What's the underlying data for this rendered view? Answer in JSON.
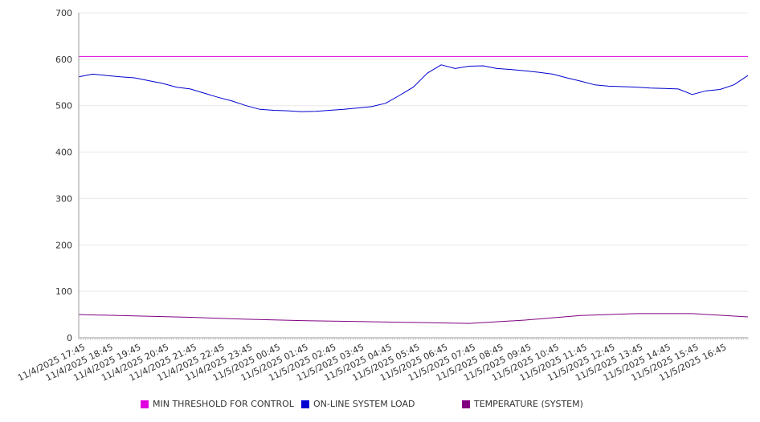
{
  "chart_data": {
    "type": "line",
    "y_ticks": [
      0,
      100,
      200,
      300,
      400,
      500,
      600,
      700
    ],
    "ylim": [
      0,
      700
    ],
    "grid": true,
    "legend_position": "bottom",
    "x_range": [
      "11/4/2025 17:30",
      "11/5/2025 17:30"
    ],
    "x_ticks": [
      "11/4/2025 17:45",
      "11/4/2025 18:45",
      "11/4/2025 19:45",
      "11/4/2025 20:45",
      "11/4/2025 21:45",
      "11/4/2025 22:45",
      "11/4/2025 23:45",
      "11/5/2025 00:45",
      "11/5/2025 01:45",
      "11/5/2025 02:45",
      "11/5/2025 03:45",
      "11/5/2025 04:45",
      "11/5/2025 05:45",
      "11/5/2025 06:45",
      "11/5/2025 07:45",
      "11/5/2025 08:45",
      "11/5/2025 09:45",
      "11/5/2025 10:45",
      "11/5/2025 11:45",
      "11/5/2025 12:45",
      "11/5/2025 13:45",
      "11/5/2025 14:45",
      "11/5/2025 15:45",
      "11/5/2025 16:45"
    ],
    "series": [
      {
        "name": "MIN THRESHOLD FOR CONTROL",
        "color": "#e000e0",
        "x": [
          "11/4/2025 17:30",
          "11/5/2025 17:30"
        ],
        "y": [
          606,
          606
        ]
      },
      {
        "name": "ON-LINE SYSTEM LOAD",
        "color": "#0000d0",
        "x": [
          "11/4/2025 17:30",
          "11/4/2025 18:00",
          "11/4/2025 18:30",
          "11/4/2025 19:00",
          "11/4/2025 19:30",
          "11/4/2025 20:00",
          "11/4/2025 20:30",
          "11/4/2025 21:00",
          "11/4/2025 21:30",
          "11/4/2025 22:00",
          "11/4/2025 22:30",
          "11/4/2025 23:00",
          "11/4/2025 23:30",
          "11/5/2025 00:00",
          "11/5/2025 00:30",
          "11/5/2025 01:00",
          "11/5/2025 01:30",
          "11/5/2025 02:00",
          "11/5/2025 02:30",
          "11/5/2025 03:00",
          "11/5/2025 03:30",
          "11/5/2025 04:00",
          "11/5/2025 04:30",
          "11/5/2025 05:00",
          "11/5/2025 05:30",
          "11/5/2025 06:00",
          "11/5/2025 06:30",
          "11/5/2025 07:00",
          "11/5/2025 07:30",
          "11/5/2025 08:00",
          "11/5/2025 08:30",
          "11/5/2025 09:00",
          "11/5/2025 09:30",
          "11/5/2025 10:00",
          "11/5/2025 10:30",
          "11/5/2025 11:00",
          "11/5/2025 11:30",
          "11/5/2025 12:00",
          "11/5/2025 12:30",
          "11/5/2025 13:00",
          "11/5/2025 13:30",
          "11/5/2025 14:00",
          "11/5/2025 14:30",
          "11/5/2025 15:00",
          "11/5/2025 15:30",
          "11/5/2025 16:00",
          "11/5/2025 16:30",
          "11/5/2025 17:00",
          "11/5/2025 17:30"
        ],
        "y": [
          562,
          568,
          565,
          562,
          560,
          554,
          548,
          540,
          536,
          527,
          518,
          510,
          500,
          492,
          490,
          489,
          487,
          488,
          490,
          492,
          495,
          498,
          505,
          522,
          540,
          570,
          588,
          580,
          585,
          586,
          580,
          578,
          575,
          572,
          568,
          560,
          553,
          545,
          542,
          541,
          540,
          538,
          537,
          536,
          524,
          532,
          535,
          545,
          565
        ]
      },
      {
        "name": "TEMPERATURE (SYSTEM)",
        "color": "#800080",
        "x": [
          "11/4/2025 17:30",
          "11/4/2025 19:30",
          "11/4/2025 21:30",
          "11/4/2025 23:30",
          "11/5/2025 01:30",
          "11/5/2025 03:30",
          "11/5/2025 05:30",
          "11/5/2025 07:30",
          "11/5/2025 09:30",
          "11/5/2025 11:30",
          "11/5/2025 13:30",
          "11/5/2025 15:30",
          "11/5/2025 17:30"
        ],
        "y": [
          50,
          47,
          44,
          40,
          37,
          35,
          33,
          31,
          38,
          48,
          52,
          52,
          45
        ]
      }
    ]
  }
}
